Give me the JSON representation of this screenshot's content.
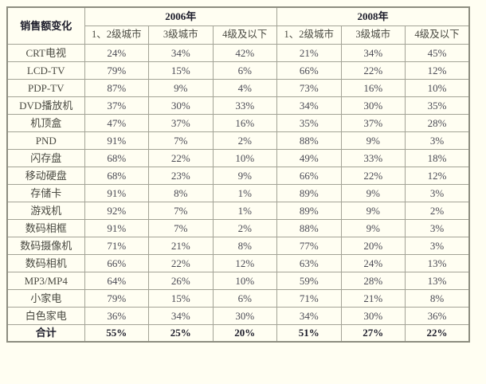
{
  "table": {
    "corner_header": "销售额变化",
    "year_groups": [
      "2006年",
      "2008年"
    ],
    "tier_headers": [
      "1、2级城市",
      "3级城市",
      "4级及以下"
    ],
    "rows": [
      {
        "label": "CRT电视",
        "values": [
          "24%",
          "34%",
          "42%",
          "21%",
          "34%",
          "45%"
        ]
      },
      {
        "label": "LCD-TV",
        "values": [
          "79%",
          "15%",
          "6%",
          "66%",
          "22%",
          "12%"
        ]
      },
      {
        "label": "PDP-TV",
        "values": [
          "87%",
          "9%",
          "4%",
          "73%",
          "16%",
          "10%"
        ]
      },
      {
        "label": "DVD播放机",
        "values": [
          "37%",
          "30%",
          "33%",
          "34%",
          "30%",
          "35%"
        ]
      },
      {
        "label": "机顶盒",
        "values": [
          "47%",
          "37%",
          "16%",
          "35%",
          "37%",
          "28%"
        ]
      },
      {
        "label": "PND",
        "values": [
          "91%",
          "7%",
          "2%",
          "88%",
          "9%",
          "3%"
        ]
      },
      {
        "label": "闪存盘",
        "values": [
          "68%",
          "22%",
          "10%",
          "49%",
          "33%",
          "18%"
        ]
      },
      {
        "label": "移动硬盘",
        "values": [
          "68%",
          "23%",
          "9%",
          "66%",
          "22%",
          "12%"
        ]
      },
      {
        "label": "存储卡",
        "values": [
          "91%",
          "8%",
          "1%",
          "89%",
          "9%",
          "3%"
        ]
      },
      {
        "label": "游戏机",
        "values": [
          "92%",
          "7%",
          "1%",
          "89%",
          "9%",
          "2%"
        ]
      },
      {
        "label": "数码相框",
        "values": [
          "91%",
          "7%",
          "2%",
          "88%",
          "9%",
          "3%"
        ]
      },
      {
        "label": "数码摄像机",
        "values": [
          "71%",
          "21%",
          "8%",
          "77%",
          "20%",
          "3%"
        ]
      },
      {
        "label": "数码相机",
        "values": [
          "66%",
          "22%",
          "12%",
          "63%",
          "24%",
          "13%"
        ]
      },
      {
        "label": "MP3/MP4",
        "values": [
          "64%",
          "26%",
          "10%",
          "59%",
          "28%",
          "13%"
        ]
      },
      {
        "label": "小家电",
        "values": [
          "79%",
          "15%",
          "6%",
          "71%",
          "21%",
          "8%"
        ]
      },
      {
        "label": "白色家电",
        "values": [
          "36%",
          "34%",
          "30%",
          "34%",
          "30%",
          "36%"
        ]
      },
      {
        "label": "合计",
        "is_total": true,
        "values": [
          "55%",
          "25%",
          "20%",
          "51%",
          "27%",
          "22%"
        ]
      }
    ],
    "colors": {
      "page_background": "#fffef2",
      "cell_background": "#fffef2",
      "border": "#a3a396",
      "border_outer": "#8d8d80",
      "text": "#4a4a42",
      "value_text": "#4b4b55",
      "bold_text": "#1d1d2b"
    }
  },
  "chart_data": {
    "type": "table",
    "title": "销售额变化",
    "column_groups": [
      "2006年",
      "2008年"
    ],
    "columns": [
      "销售额变化",
      "2006年 1、2级城市",
      "2006年 3级城市",
      "2006年 4级及以下",
      "2008年 1、2级城市",
      "2008年 3级城市",
      "2008年 4级及以下"
    ],
    "rows": [
      [
        "CRT电视",
        24,
        34,
        42,
        21,
        34,
        45
      ],
      [
        "LCD-TV",
        79,
        15,
        6,
        66,
        22,
        12
      ],
      [
        "PDP-TV",
        87,
        9,
        4,
        73,
        16,
        10
      ],
      [
        "DVD播放机",
        37,
        30,
        33,
        34,
        30,
        35
      ],
      [
        "机顶盒",
        47,
        37,
        16,
        35,
        37,
        28
      ],
      [
        "PND",
        91,
        7,
        2,
        88,
        9,
        3
      ],
      [
        "闪存盘",
        68,
        22,
        10,
        49,
        33,
        18
      ],
      [
        "移动硬盘",
        68,
        23,
        9,
        66,
        22,
        12
      ],
      [
        "存储卡",
        91,
        8,
        1,
        89,
        9,
        3
      ],
      [
        "游戏机",
        92,
        7,
        1,
        89,
        9,
        2
      ],
      [
        "数码相框",
        91,
        7,
        2,
        88,
        9,
        3
      ],
      [
        "数码摄像机",
        71,
        21,
        8,
        77,
        20,
        3
      ],
      [
        "数码相机",
        66,
        22,
        12,
        63,
        24,
        13
      ],
      [
        "MP3/MP4",
        64,
        26,
        10,
        59,
        28,
        13
      ],
      [
        "小家电",
        79,
        15,
        6,
        71,
        21,
        8
      ],
      [
        "白色家电",
        36,
        34,
        30,
        34,
        30,
        36
      ],
      [
        "合计",
        55,
        25,
        20,
        51,
        27,
        22
      ]
    ],
    "units": "%",
    "notes": "values are percentages; 合计 row is the bold total row"
  }
}
